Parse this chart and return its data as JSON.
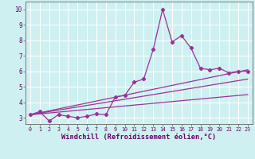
{
  "title": "",
  "xlabel": "Windchill (Refroidissement éolien,°C)",
  "ylabel": "",
  "bg_color": "#cff0f0",
  "line_color": "#993399",
  "grid_color": "#aadddd",
  "xlim": [
    -0.5,
    23.5
  ],
  "ylim": [
    2.6,
    10.5
  ],
  "xticks": [
    0,
    1,
    2,
    3,
    4,
    5,
    6,
    7,
    8,
    9,
    10,
    11,
    12,
    13,
    14,
    15,
    16,
    17,
    18,
    19,
    20,
    21,
    22,
    23
  ],
  "yticks": [
    3,
    4,
    5,
    6,
    7,
    8,
    9,
    10
  ],
  "series1_x": [
    0,
    1,
    2,
    3,
    4,
    5,
    6,
    7,
    8,
    9,
    10,
    11,
    12,
    13,
    14,
    15,
    16,
    17,
    18,
    19,
    20,
    21,
    22,
    23
  ],
  "series1_y": [
    3.2,
    3.4,
    2.8,
    3.2,
    3.1,
    3.0,
    3.1,
    3.25,
    3.2,
    4.35,
    4.45,
    5.3,
    5.5,
    7.4,
    10.0,
    7.9,
    8.3,
    7.5,
    6.2,
    6.1,
    6.2,
    5.9,
    6.0,
    6.0
  ],
  "series2_x": [
    0,
    23
  ],
  "series2_y": [
    3.2,
    5.5
  ],
  "series3_x": [
    0,
    23
  ],
  "series3_y": [
    3.2,
    6.1
  ],
  "series4_x": [
    0,
    23
  ],
  "series4_y": [
    3.2,
    4.5
  ]
}
